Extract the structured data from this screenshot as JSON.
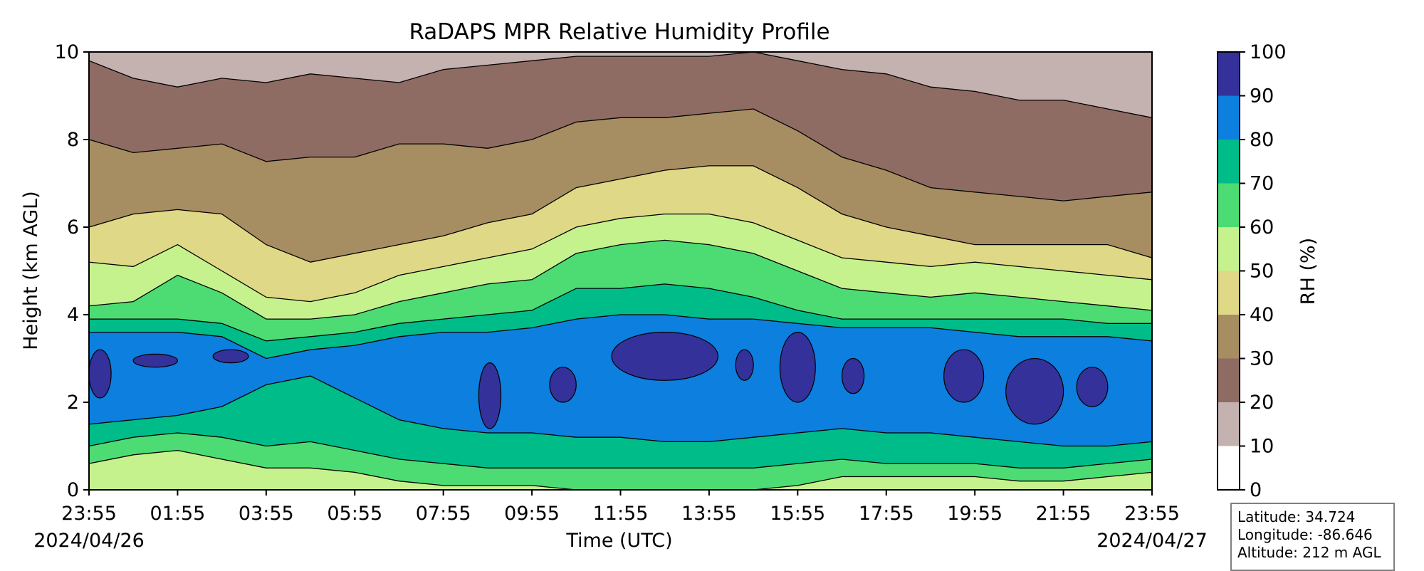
{
  "chart_data": {
    "type": "heatmap",
    "title": "RaDAPS MPR Relative Humidity Profile",
    "xlabel": "Time (UTC)",
    "ylabel": "Height (km AGL)",
    "colorbar_label": "RH (%)",
    "x_tick_labels": [
      "23:55",
      "01:55",
      "03:55",
      "05:55",
      "07:55",
      "09:55",
      "11:55",
      "13:55",
      "15:55",
      "17:55",
      "19:55",
      "21:55",
      "23:55"
    ],
    "x_hours": [
      0,
      2,
      4,
      6,
      8,
      10,
      12,
      14,
      16,
      18,
      20,
      22,
      24
    ],
    "date_start": "2024/04/26",
    "date_end": "2024/04/27",
    "y_ticks": [
      0,
      2,
      4,
      6,
      8,
      10
    ],
    "ylim": [
      0,
      10
    ],
    "xlim_hours": [
      0,
      24
    ],
    "colorbar_ticks": [
      0,
      10,
      20,
      30,
      40,
      50,
      60,
      70,
      80,
      90,
      100
    ],
    "levels": [
      {
        "range": [
          0,
          10
        ],
        "color": "#ffffff"
      },
      {
        "range": [
          10,
          20
        ],
        "color": "#c4b2b0"
      },
      {
        "range": [
          20,
          30
        ],
        "color": "#8e6c64"
      },
      {
        "range": [
          30,
          40
        ],
        "color": "#a78d62"
      },
      {
        "range": [
          40,
          50
        ],
        "color": "#dfd886"
      },
      {
        "range": [
          50,
          60
        ],
        "color": "#c6f28e"
      },
      {
        "range": [
          60,
          70
        ],
        "color": "#4ddc74"
      },
      {
        "range": [
          70,
          80
        ],
        "color": "#00bc88"
      },
      {
        "range": [
          80,
          90
        ],
        "color": "#0c7fdf"
      },
      {
        "range": [
          90,
          100
        ],
        "color": "#34319a"
      }
    ],
    "boundaries_km": [
      {
        "time_h": [
          0,
          1,
          2,
          3,
          4,
          5,
          6,
          7,
          8,
          9,
          10,
          11,
          12,
          13,
          14,
          15,
          16,
          17,
          18,
          19,
          20,
          21,
          22,
          23,
          24
        ],
        "b10": [
          9.8,
          9.4,
          9.2,
          9.4,
          9.3,
          9.5,
          9.4,
          9.3,
          9.6,
          9.7,
          9.8,
          9.9,
          9.9,
          9.9,
          9.9,
          10.0,
          9.8,
          9.6,
          9.5,
          9.2,
          9.1,
          8.9,
          8.9,
          8.7,
          8.5
        ],
        "b20": [
          8.0,
          7.7,
          7.8,
          7.9,
          7.5,
          7.6,
          7.6,
          7.9,
          7.9,
          7.8,
          8.0,
          8.4,
          8.5,
          8.5,
          8.6,
          8.7,
          8.2,
          7.6,
          7.3,
          6.9,
          6.8,
          6.7,
          6.6,
          6.7,
          6.8
        ],
        "b30": [
          6.0,
          6.3,
          6.4,
          6.3,
          5.6,
          5.2,
          5.4,
          5.6,
          5.8,
          6.1,
          6.3,
          6.9,
          7.1,
          7.3,
          7.4,
          7.4,
          6.9,
          6.3,
          6.0,
          5.8,
          5.6,
          5.6,
          5.6,
          5.6,
          5.3
        ],
        "b40": [
          5.2,
          5.1,
          5.6,
          5.0,
          4.4,
          4.3,
          4.5,
          4.9,
          5.1,
          5.3,
          5.5,
          6.0,
          6.2,
          6.3,
          6.3,
          6.1,
          5.7,
          5.3,
          5.2,
          5.1,
          5.2,
          5.1,
          5.0,
          4.9,
          4.8
        ],
        "b50": [
          4.2,
          4.3,
          4.9,
          4.5,
          3.9,
          3.9,
          4.0,
          4.3,
          4.5,
          4.7,
          4.8,
          5.4,
          5.6,
          5.7,
          5.6,
          5.4,
          5.0,
          4.6,
          4.5,
          4.4,
          4.5,
          4.4,
          4.3,
          4.2,
          4.1
        ],
        "b60": [
          3.9,
          3.9,
          3.9,
          3.8,
          3.4,
          3.5,
          3.6,
          3.8,
          3.9,
          4.0,
          4.1,
          4.6,
          4.6,
          4.7,
          4.6,
          4.4,
          4.1,
          3.9,
          3.9,
          3.9,
          3.9,
          3.9,
          3.9,
          3.8,
          3.8
        ],
        "b70": [
          3.6,
          3.6,
          3.6,
          3.5,
          3.0,
          3.2,
          3.3,
          3.5,
          3.6,
          3.6,
          3.7,
          3.9,
          4.0,
          4.0,
          3.9,
          3.9,
          3.8,
          3.7,
          3.7,
          3.7,
          3.6,
          3.5,
          3.5,
          3.5,
          3.4
        ],
        "b80": [
          1.5,
          1.6,
          1.7,
          1.9,
          2.4,
          2.6,
          2.1,
          1.6,
          1.4,
          1.3,
          1.3,
          1.2,
          1.2,
          1.1,
          1.1,
          1.2,
          1.3,
          1.4,
          1.3,
          1.3,
          1.2,
          1.1,
          1.0,
          1.0,
          1.1
        ],
        "b70_low": [
          1.0,
          1.2,
          1.3,
          1.2,
          1.0,
          1.1,
          0.9,
          0.7,
          0.6,
          0.5,
          0.5,
          0.5,
          0.5,
          0.5,
          0.5,
          0.5,
          0.6,
          0.7,
          0.6,
          0.6,
          0.6,
          0.5,
          0.5,
          0.6,
          0.7
        ],
        "b60_low": [
          0.6,
          0.8,
          0.9,
          0.7,
          0.5,
          0.5,
          0.4,
          0.2,
          0.1,
          0.1,
          0.1,
          0.0,
          0.0,
          0.0,
          0.0,
          0.0,
          0.1,
          0.3,
          0.3,
          0.3,
          0.3,
          0.2,
          0.2,
          0.3,
          0.4
        ]
      }
    ],
    "high_humidity_patches": [
      {
        "t0": 0.0,
        "t1": 0.5,
        "h0": 2.1,
        "h1": 3.2
      },
      {
        "t0": 1.0,
        "t1": 2.0,
        "h0": 2.8,
        "h1": 3.1
      },
      {
        "t0": 2.8,
        "t1": 3.6,
        "h0": 2.9,
        "h1": 3.2
      },
      {
        "t0": 8.8,
        "t1": 9.3,
        "h0": 1.4,
        "h1": 2.9
      },
      {
        "t0": 10.4,
        "t1": 11.0,
        "h0": 2.0,
        "h1": 2.8
      },
      {
        "t0": 11.8,
        "t1": 14.2,
        "h0": 2.5,
        "h1": 3.6
      },
      {
        "t0": 14.6,
        "t1": 15.0,
        "h0": 2.5,
        "h1": 3.2
      },
      {
        "t0": 15.6,
        "t1": 16.4,
        "h0": 2.0,
        "h1": 3.6
      },
      {
        "t0": 17.0,
        "t1": 17.5,
        "h0": 2.2,
        "h1": 3.0
      },
      {
        "t0": 19.3,
        "t1": 20.2,
        "h0": 2.0,
        "h1": 3.2
      },
      {
        "t0": 20.7,
        "t1": 22.0,
        "h0": 1.5,
        "h1": 3.0
      },
      {
        "t0": 22.3,
        "t1": 23.0,
        "h0": 1.9,
        "h1": 2.8
      }
    ]
  },
  "info": {
    "latitude": "Latitude: 34.724",
    "longitude": "Longitude: -86.646",
    "altitude": "Altitude: 212 m AGL"
  }
}
